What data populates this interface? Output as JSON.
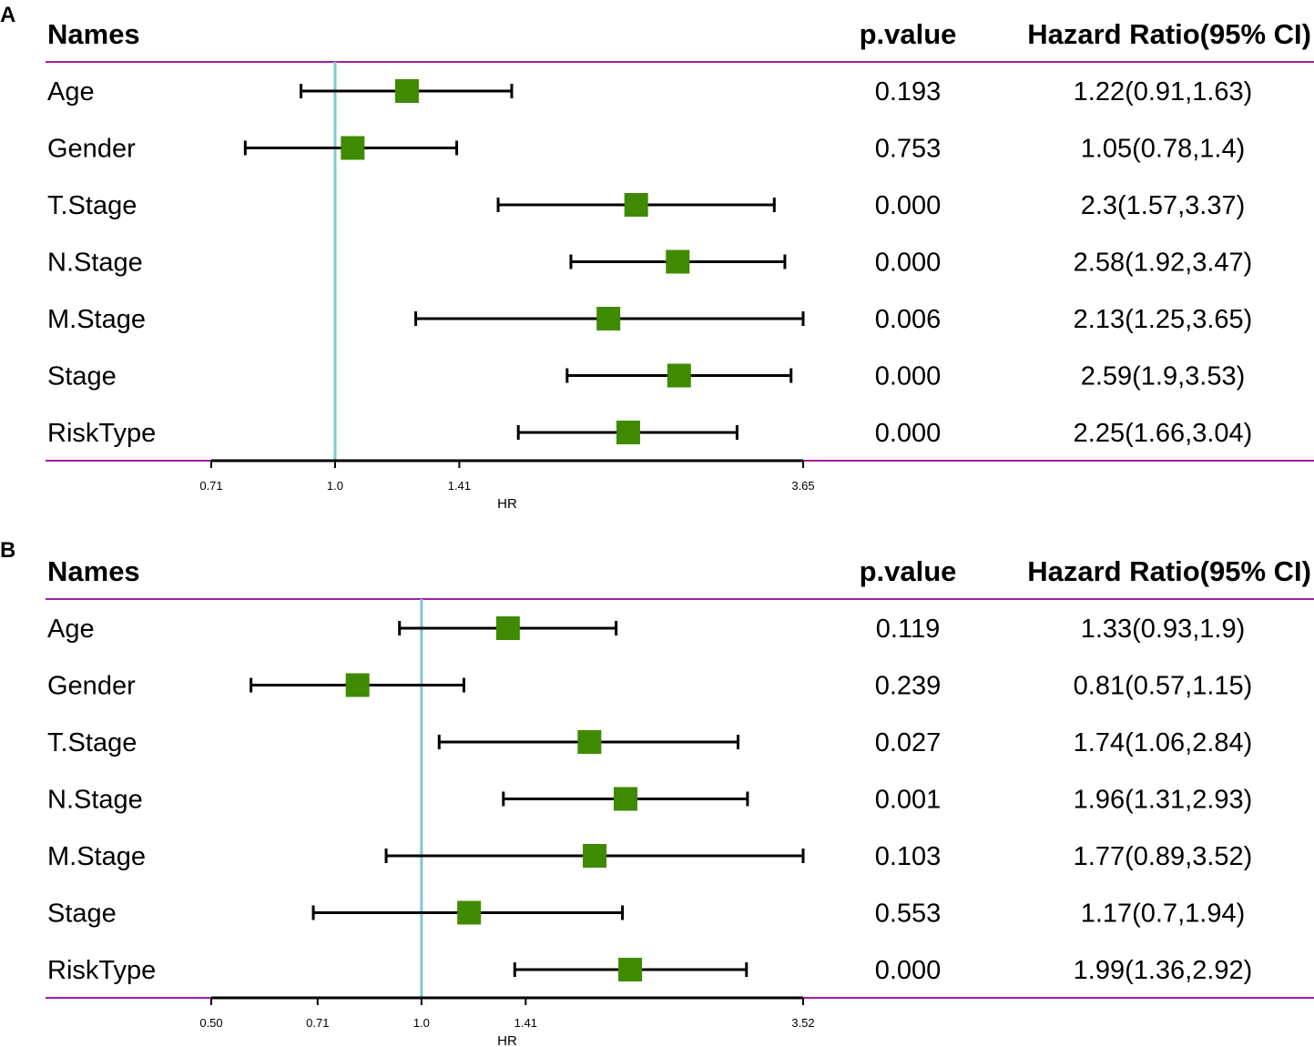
{
  "colors": {
    "rule": "#a020a0",
    "reference": "#7ec8d3",
    "marker": "#3f8a00",
    "whisker": "#000000"
  },
  "chart_data": [
    {
      "type": "forest",
      "panel": "A",
      "headers": {
        "names": "Names",
        "pvalue": "p.value",
        "hr": "Hazard Ratio(95% CI)"
      },
      "xlabel": "HR",
      "scale": "log",
      "xlim": [
        0.71,
        3.65
      ],
      "reference": 1.0,
      "ticks": [
        "0.71",
        "1.0",
        "1.41",
        "3.65"
      ],
      "rows": [
        {
          "name": "Age",
          "hr": 1.22,
          "lower": 0.91,
          "upper": 1.63,
          "pvalue": "0.193",
          "label": "1.22(0.91,1.63)"
        },
        {
          "name": "Gender",
          "hr": 1.05,
          "lower": 0.78,
          "upper": 1.4,
          "pvalue": "0.753",
          "label": "1.05(0.78,1.4)"
        },
        {
          "name": "T.Stage",
          "hr": 2.3,
          "lower": 1.57,
          "upper": 3.37,
          "pvalue": "0.000",
          "label": "2.3(1.57,3.37)"
        },
        {
          "name": "N.Stage",
          "hr": 2.58,
          "lower": 1.92,
          "upper": 3.47,
          "pvalue": "0.000",
          "label": "2.58(1.92,3.47)"
        },
        {
          "name": "M.Stage",
          "hr": 2.13,
          "lower": 1.25,
          "upper": 3.65,
          "pvalue": "0.006",
          "label": "2.13(1.25,3.65)"
        },
        {
          "name": "Stage",
          "hr": 2.59,
          "lower": 1.9,
          "upper": 3.53,
          "pvalue": "0.000",
          "label": "2.59(1.9,3.53)"
        },
        {
          "name": "RiskType",
          "hr": 2.25,
          "lower": 1.66,
          "upper": 3.04,
          "pvalue": "0.000",
          "label": "2.25(1.66,3.04)"
        }
      ]
    },
    {
      "type": "forest",
      "panel": "B",
      "headers": {
        "names": "Names",
        "pvalue": "p.value",
        "hr": "Hazard Ratio(95% CI)"
      },
      "xlabel": "HR",
      "scale": "log",
      "xlim": [
        0.5,
        3.52
      ],
      "reference": 1.0,
      "ticks": [
        "0.50",
        "0.71",
        "1.0",
        "1.41",
        "3.52"
      ],
      "rows": [
        {
          "name": "Age",
          "hr": 1.33,
          "lower": 0.93,
          "upper": 1.9,
          "pvalue": "0.119",
          "label": "1.33(0.93,1.9)"
        },
        {
          "name": "Gender",
          "hr": 0.81,
          "lower": 0.57,
          "upper": 1.15,
          "pvalue": "0.239",
          "label": "0.81(0.57,1.15)"
        },
        {
          "name": "T.Stage",
          "hr": 1.74,
          "lower": 1.06,
          "upper": 2.84,
          "pvalue": "0.027",
          "label": "1.74(1.06,2.84)"
        },
        {
          "name": "N.Stage",
          "hr": 1.96,
          "lower": 1.31,
          "upper": 2.93,
          "pvalue": "0.001",
          "label": "1.96(1.31,2.93)"
        },
        {
          "name": "M.Stage",
          "hr": 1.77,
          "lower": 0.89,
          "upper": 3.52,
          "pvalue": "0.103",
          "label": "1.77(0.89,3.52)"
        },
        {
          "name": "Stage",
          "hr": 1.17,
          "lower": 0.7,
          "upper": 1.94,
          "pvalue": "0.553",
          "label": "1.17(0.7,1.94)"
        },
        {
          "name": "RiskType",
          "hr": 1.99,
          "lower": 1.36,
          "upper": 2.92,
          "pvalue": "0.000",
          "label": "1.99(1.36,2.92)"
        }
      ]
    }
  ]
}
